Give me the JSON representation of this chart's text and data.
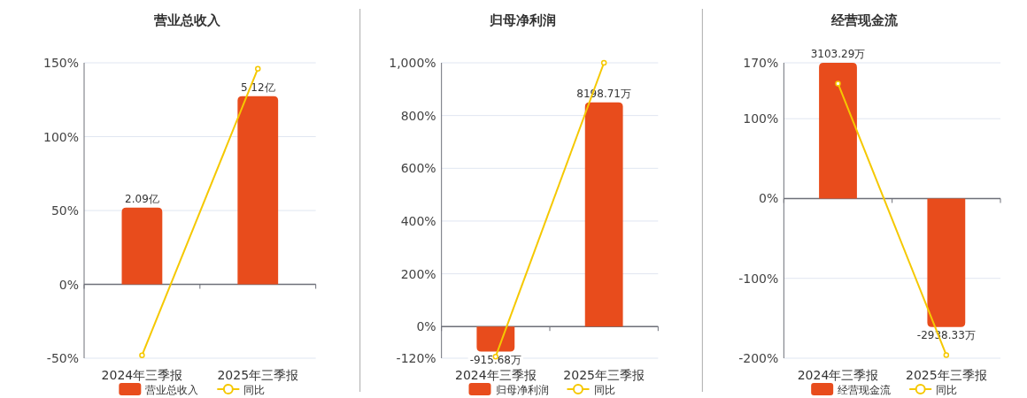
{
  "chart_data": [
    {
      "type": "bar",
      "title": "营业总收入",
      "categories": [
        "2024年三季报",
        "2025年三季报"
      ],
      "series": [
        {
          "name": "营业总收入",
          "axis": "y2",
          "color": "#e84c1c",
          "values": [
            2.09,
            5.12
          ],
          "value_labels": [
            "2.09亿",
            "5.12亿"
          ]
        },
        {
          "name": "同比",
          "type": "line",
          "color": "#f5c800",
          "marker": "circle",
          "values": [
            -48,
            146
          ]
        }
      ],
      "ylim": [
        -50,
        150
      ],
      "yticks": [
        {
          "value": -50,
          "label": "-50%"
        },
        {
          "value": 0,
          "label": "0%"
        },
        {
          "value": 50,
          "label": "50%"
        },
        {
          "value": 100,
          "label": "100%"
        },
        {
          "value": 150,
          "label": "150%"
        }
      ],
      "y2lim": [
        -2.01,
        6.03
      ],
      "grid": "y",
      "legend": "bottom"
    },
    {
      "type": "bar",
      "title": "归母净利润",
      "categories": [
        "2024年三季报",
        "2025年三季报"
      ],
      "series": [
        {
          "name": "归母净利润",
          "axis": "y2",
          "color": "#e84c1c",
          "values": [
            -915.68,
            8198.71
          ],
          "value_labels": [
            "-915.68万",
            "8198.71万"
          ]
        },
        {
          "name": "同比",
          "type": "line",
          "color": "#f5c800",
          "marker": "circle",
          "values": [
            -114,
            1000
          ]
        }
      ],
      "ylim": [
        -120,
        1000
      ],
      "yticks": [
        {
          "value": -120,
          "label": "-120%"
        },
        {
          "value": 0,
          "label": "0%"
        },
        {
          "value": 200,
          "label": "200%"
        },
        {
          "value": 400,
          "label": "400%"
        },
        {
          "value": 600,
          "label": "600%"
        },
        {
          "value": 800,
          "label": "800%"
        },
        {
          "value": 1000,
          "label": "1,000%"
        }
      ],
      "y2lim": [
        -1157,
        9646
      ],
      "grid": "y",
      "legend": "bottom"
    },
    {
      "type": "bar",
      "title": "经营现金流",
      "categories": [
        "2024年三季报",
        "2025年三季报"
      ],
      "series": [
        {
          "name": "经营现金流",
          "axis": "y2",
          "color": "#e84c1c",
          "values": [
            3103.29,
            -2938.33
          ],
          "value_labels": [
            "3103.29万",
            "-2938.33万"
          ]
        },
        {
          "name": "同比",
          "type": "line",
          "color": "#f5c800",
          "marker": "circle",
          "values": [
            144,
            -196
          ]
        }
      ],
      "ylim": [
        -200,
        170
      ],
      "yticks": [
        {
          "value": -200,
          "label": "-200%"
        },
        {
          "value": -100,
          "label": "-100%"
        },
        {
          "value": 0,
          "label": "0%"
        },
        {
          "value": 100,
          "label": "100%"
        },
        {
          "value": 170,
          "label": "170%"
        }
      ],
      "y2lim": [
        -3650,
        3103.29
      ],
      "grid": "y",
      "legend": "bottom"
    }
  ]
}
